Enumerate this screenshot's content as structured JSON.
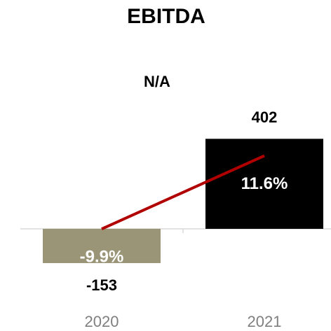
{
  "chart_data": {
    "type": "bar",
    "title": "EBITDA",
    "annotation": "N/A",
    "categories": [
      "2020",
      "2021"
    ],
    "values": [
      -153,
      402
    ],
    "colors": [
      "#9a9577",
      "#000000"
    ],
    "ylim": [
      -200,
      500
    ],
    "line": {
      "values": [
        -9.9,
        11.6
      ],
      "value_labels": [
        "-9.9%",
        "11.6%"
      ],
      "color": "#b00000",
      "axis": "y2"
    },
    "y2lim": [
      -23,
      23
    ]
  }
}
